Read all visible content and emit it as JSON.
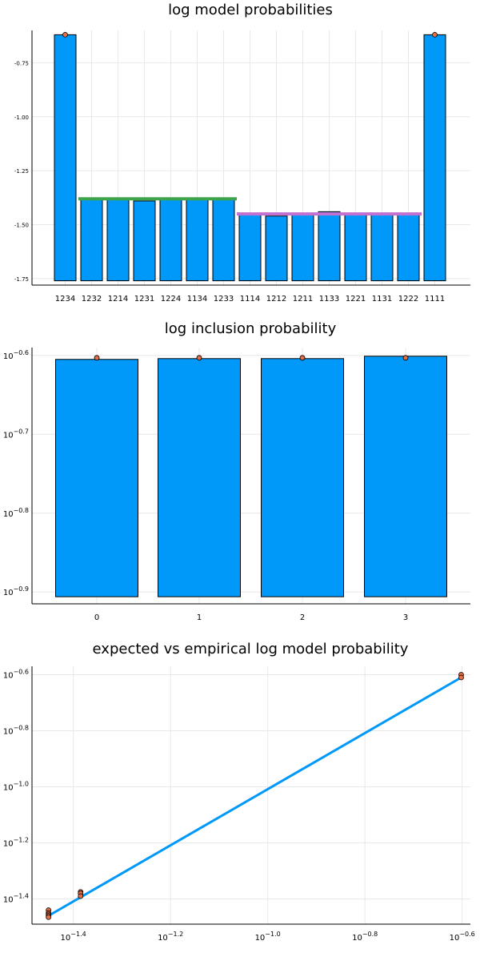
{
  "colors": {
    "bar": "#0099fa",
    "point": "#e26f46",
    "green_line": "#3da44d",
    "purple_line": "#c271d2",
    "grid": "#e8e8e8",
    "line": "#0099fa"
  },
  "chart_data": [
    {
      "type": "bar",
      "title": "log model probabilities",
      "categories": [
        "1234",
        "1232",
        "1214",
        "1231",
        "1224",
        "1134",
        "1233",
        "1114",
        "1212",
        "1211",
        "1133",
        "1221",
        "1131",
        "1222",
        "1111"
      ],
      "values": [
        -0.62,
        -1.38,
        -1.38,
        -1.39,
        -1.38,
        -1.38,
        -1.38,
        -1.45,
        -1.46,
        -1.45,
        -1.44,
        -1.45,
        -1.45,
        -1.45,
        -0.62
      ],
      "bar_base": -1.76,
      "points": [
        -0.62,
        null,
        null,
        null,
        null,
        null,
        null,
        null,
        null,
        null,
        null,
        null,
        null,
        null,
        -0.62
      ],
      "hlines": [
        {
          "color_key": "green_line",
          "from_index": 1,
          "to_index": 6,
          "y": -1.38
        },
        {
          "color_key": "purple_line",
          "from_index": 7,
          "to_index": 13,
          "y": -1.45
        }
      ],
      "ylim": [
        -1.78,
        -0.6
      ],
      "yticks": [
        -1.75,
        -1.5,
        -1.25,
        -1.0,
        -0.75
      ],
      "ytick_labels": [
        "-1.75",
        "-1.50",
        "-1.25",
        "-1.00",
        "-0.75"
      ],
      "grid": true
    },
    {
      "type": "bar",
      "title": "log inclusion probability",
      "categories": [
        "0",
        "1",
        "2",
        "3"
      ],
      "values": [
        -0.605,
        -0.604,
        -0.604,
        -0.601
      ],
      "bar_base": -0.906,
      "points": [
        -0.603,
        -0.603,
        -0.603,
        -0.603
      ],
      "ylim": [
        -0.915,
        -0.59
      ],
      "yticks": [
        -0.9,
        -0.8,
        -0.7,
        -0.6
      ],
      "ytick_labels": [
        "−0.9",
        "−0.8",
        "−0.7",
        "−0.6"
      ],
      "grid": true
    },
    {
      "type": "scatter",
      "title": "expected vs empirical log model probability",
      "line": {
        "x": [
          -1.451,
          -0.602
        ],
        "y": [
          -1.46,
          -0.61
        ]
      },
      "points": [
        {
          "x": -1.451,
          "y": -1.44
        },
        {
          "x": -1.451,
          "y": -1.45
        },
        {
          "x": -1.451,
          "y": -1.455
        },
        {
          "x": -1.451,
          "y": -1.46
        },
        {
          "x": -1.451,
          "y": -1.465
        },
        {
          "x": -1.385,
          "y": -1.375
        },
        {
          "x": -1.385,
          "y": -1.38
        },
        {
          "x": -1.385,
          "y": -1.39
        },
        {
          "x": -0.602,
          "y": -0.6
        },
        {
          "x": -0.602,
          "y": -0.61
        }
      ],
      "xlim": [
        -1.485,
        -0.583
      ],
      "ylim": [
        -1.49,
        -0.57
      ],
      "xscale": "log",
      "yscale": "log",
      "xticks": [
        -1.4,
        -1.2,
        -1.0,
        -0.8,
        -0.6
      ],
      "xtick_labels": [
        "−1.4",
        "−1.2",
        "−1.0",
        "−0.8",
        "−0.6"
      ],
      "yticks": [
        -1.4,
        -1.2,
        -1.0,
        -0.8,
        -0.6
      ],
      "ytick_labels": [
        "−1.4",
        "−1.2",
        "−1.0",
        "−0.8",
        "−0.6"
      ],
      "grid": true
    }
  ]
}
